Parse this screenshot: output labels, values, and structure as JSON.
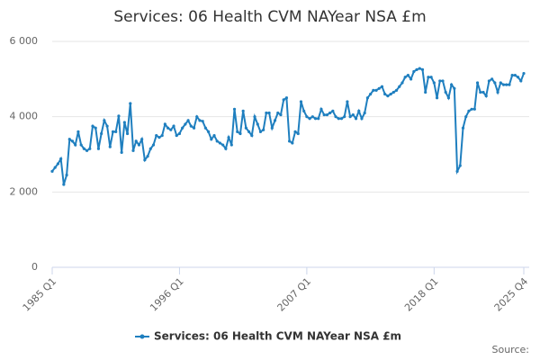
{
  "chart_data": {
    "type": "line",
    "title": "Services: 06 Health CVM NAYear NSA £m",
    "categories": [
      "1985 Q1",
      null,
      null,
      null,
      null,
      null,
      null,
      null,
      null,
      null,
      null,
      null,
      null,
      null,
      null,
      null,
      null,
      null,
      null,
      null,
      null,
      null,
      null,
      null,
      null,
      null,
      null,
      null,
      null,
      null,
      null,
      null,
      null,
      null,
      null,
      null,
      null,
      null,
      null,
      null,
      null,
      null,
      null,
      null,
      "1996 Q1",
      null,
      null,
      null,
      null,
      null,
      null,
      null,
      null,
      null,
      null,
      null,
      null,
      null,
      null,
      null,
      null,
      null,
      null,
      null,
      null,
      null,
      null,
      null,
      null,
      null,
      null,
      null,
      null,
      null,
      null,
      null,
      null,
      null,
      null,
      null,
      null,
      null,
      null,
      null,
      null,
      null,
      null,
      null,
      "2007 Q1",
      null,
      null,
      null,
      null,
      null,
      null,
      null,
      null,
      null,
      null,
      null,
      null,
      null,
      null,
      null,
      null,
      null,
      null,
      null,
      null,
      null,
      null,
      null,
      null,
      null,
      null,
      null,
      null,
      null,
      null,
      null,
      null,
      null,
      null,
      null,
      null,
      null,
      null,
      null,
      null,
      null,
      null,
      null,
      "2018 Q1",
      null,
      null,
      null,
      null,
      null,
      null,
      null,
      null,
      null,
      null,
      null,
      null,
      null,
      null,
      null,
      null,
      null,
      null,
      null,
      null,
      null,
      null,
      null,
      null,
      null,
      null,
      null,
      null,
      null,
      null,
      "2025 Q4"
    ],
    "series": [
      {
        "name": "Services: 06 Health CVM NAYear NSA £m",
        "color": "#1f7fbf",
        "values": [
          2550,
          2650,
          2750,
          2880,
          2200,
          2450,
          3400,
          3350,
          3250,
          3600,
          3250,
          3150,
          3100,
          3150,
          3750,
          3700,
          3150,
          3550,
          3900,
          3750,
          3200,
          3600,
          3600,
          4020,
          3050,
          3850,
          3550,
          4350,
          3100,
          3350,
          3250,
          3400,
          2850,
          2950,
          3150,
          3250,
          3500,
          3450,
          3500,
          3800,
          3700,
          3650,
          3750,
          3500,
          3550,
          3700,
          3800,
          3900,
          3750,
          3700,
          4000,
          3900,
          3880,
          3700,
          3600,
          3400,
          3500,
          3350,
          3300,
          3250,
          3150,
          3450,
          3250,
          4200,
          3600,
          3550,
          4150,
          3700,
          3600,
          3500,
          4000,
          3800,
          3600,
          3650,
          4100,
          4100,
          3700,
          3900,
          4100,
          4050,
          4450,
          4500,
          3350,
          3300,
          3600,
          3550,
          4400,
          4150,
          4000,
          3950,
          4000,
          3950,
          3950,
          4200,
          4050,
          4050,
          4100,
          4150,
          4000,
          3950,
          3950,
          4000,
          4400,
          4000,
          4050,
          3950,
          4150,
          3950,
          4100,
          4500,
          4600,
          4700,
          4700,
          4750,
          4800,
          4600,
          4550,
          4600,
          4650,
          4700,
          4800,
          4900,
          5050,
          5100,
          5000,
          5200,
          5250,
          5280,
          5250,
          4650,
          5050,
          5050,
          4900,
          4500,
          4950,
          4950,
          4650,
          4500,
          4850,
          4750,
          2550,
          2700,
          3700,
          4000,
          4150,
          4200,
          4200,
          4900,
          4650,
          4650,
          4550,
          4950,
          5000,
          4900,
          4650,
          4900,
          4850,
          4850,
          4850,
          5100,
          5100,
          5050,
          4950,
          5150
        ]
      }
    ],
    "ylim": [
      0,
      6000
    ],
    "yticks": [
      0,
      {
        "value": 2000,
        "label": "2 000"
      },
      {
        "value": 4000,
        "label": "4 000"
      },
      {
        "value": 6000,
        "label": "6 000"
      }
    ],
    "grid": true,
    "source": "Source:"
  }
}
